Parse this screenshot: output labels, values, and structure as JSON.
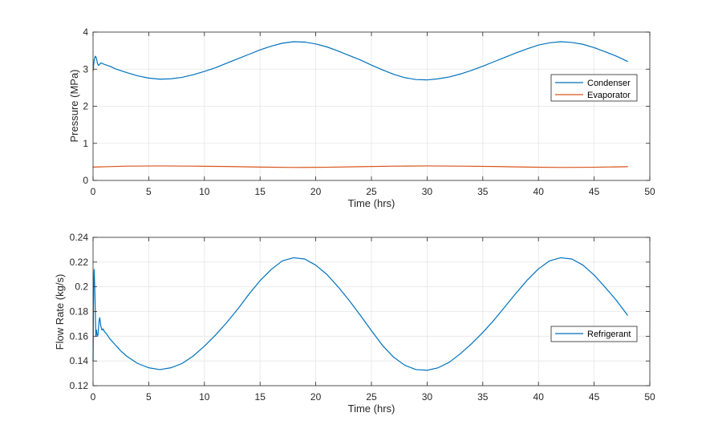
{
  "chart_data": [
    {
      "type": "line",
      "title": "",
      "xlabel": "Time (hrs)",
      "ylabel": "Pressure (MPa)",
      "xlim": [
        0,
        50
      ],
      "ylim": [
        0,
        4
      ],
      "xticks": [
        "0",
        "5",
        "10",
        "15",
        "20",
        "25",
        "30",
        "35",
        "40",
        "45",
        "50"
      ],
      "yticks": [
        "0",
        "1",
        "2",
        "3",
        "4"
      ],
      "grid": true,
      "legend_position": "right",
      "series": [
        {
          "name": "Condenser",
          "color": "#0072BD",
          "x": [
            0,
            0.1,
            0.2,
            0.3,
            0.4,
            0.5,
            0.7,
            1,
            1.5,
            2,
            3,
            4,
            5,
            6,
            7,
            8,
            9,
            10,
            11,
            12,
            13,
            14,
            15,
            16,
            17,
            18,
            19,
            20,
            21,
            22,
            23,
            24,
            25,
            26,
            27,
            28,
            29,
            30,
            31,
            32,
            33,
            34,
            35,
            36,
            37,
            38,
            39,
            40,
            41,
            42,
            43,
            44,
            45,
            46,
            47,
            48
          ],
          "y": [
            2.95,
            3.25,
            3.35,
            3.3,
            3.15,
            3.1,
            3.17,
            3.13,
            3.08,
            3.01,
            2.91,
            2.82,
            2.76,
            2.73,
            2.74,
            2.78,
            2.85,
            2.94,
            3.04,
            3.16,
            3.28,
            3.4,
            3.52,
            3.62,
            3.7,
            3.74,
            3.73,
            3.68,
            3.6,
            3.49,
            3.37,
            3.25,
            3.11,
            2.98,
            2.86,
            2.77,
            2.72,
            2.71,
            2.74,
            2.79,
            2.87,
            2.97,
            3.08,
            3.2,
            3.32,
            3.44,
            3.55,
            3.65,
            3.71,
            3.74,
            3.72,
            3.67,
            3.58,
            3.47,
            3.35,
            3.21
          ]
        },
        {
          "name": "Evaporator",
          "color": "#D95319",
          "x": [
            0,
            3,
            6,
            9,
            12,
            15,
            18,
            21,
            24,
            27,
            30,
            33,
            36,
            39,
            42,
            45,
            48
          ],
          "y": [
            0.36,
            0.385,
            0.39,
            0.385,
            0.375,
            0.36,
            0.35,
            0.355,
            0.37,
            0.385,
            0.39,
            0.385,
            0.375,
            0.36,
            0.35,
            0.355,
            0.37
          ]
        }
      ]
    },
    {
      "type": "line",
      "title": "",
      "xlabel": "Time (hrs)",
      "ylabel": "Flow Rate (kg/s)",
      "xlim": [
        0,
        50
      ],
      "ylim": [
        0.12,
        0.24
      ],
      "xticks": [
        "0",
        "5",
        "10",
        "15",
        "20",
        "25",
        "30",
        "35",
        "40",
        "45",
        "50"
      ],
      "yticks": [
        "0.12",
        "0.14",
        "0.16",
        "0.18",
        "0.2",
        "0.22",
        "0.24"
      ],
      "grid": true,
      "legend_position": "right",
      "series": [
        {
          "name": "Refrigerant",
          "color": "#0072BD",
          "x": [
            0,
            0.05,
            0.1,
            0.15,
            0.2,
            0.25,
            0.3,
            0.35,
            0.4,
            0.45,
            0.5,
            0.55,
            0.6,
            0.65,
            0.7,
            0.8,
            0.9,
            1.0,
            1.2,
            1.5,
            2,
            2.5,
            3,
            3.5,
            4,
            5,
            6,
            7,
            8,
            9,
            10,
            11,
            12,
            13,
            14,
            15,
            16,
            17,
            18,
            19,
            20,
            21,
            22,
            23,
            24,
            25,
            26,
            27,
            28,
            29,
            30,
            31,
            32,
            33,
            34,
            35,
            36,
            37,
            38,
            39,
            40,
            41,
            42,
            43,
            44,
            45,
            46,
            47,
            48
          ],
          "y": [
            0.14,
            0.2,
            0.214,
            0.2,
            0.18,
            0.16,
            0.165,
            0.162,
            0.16,
            0.162,
            0.168,
            0.173,
            0.175,
            0.172,
            0.168,
            0.165,
            0.166,
            0.164,
            0.162,
            0.158,
            0.153,
            0.148,
            0.144,
            0.141,
            0.138,
            0.1345,
            0.133,
            0.1345,
            0.138,
            0.144,
            0.152,
            0.161,
            0.171,
            0.182,
            0.194,
            0.205,
            0.214,
            0.221,
            0.2235,
            0.2225,
            0.2175,
            0.21,
            0.2,
            0.189,
            0.177,
            0.1645,
            0.1525,
            0.143,
            0.1365,
            0.133,
            0.1325,
            0.1345,
            0.139,
            0.146,
            0.154,
            0.163,
            0.173,
            0.184,
            0.195,
            0.2055,
            0.2145,
            0.221,
            0.2235,
            0.2225,
            0.2175,
            0.2095,
            0.1995,
            0.189,
            0.177
          ]
        }
      ]
    }
  ]
}
